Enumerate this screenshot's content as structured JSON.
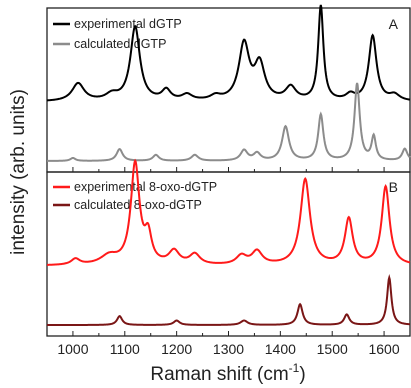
{
  "chart_data": {
    "type": "line",
    "xlabel": "Raman shift (cm",
    "xlabel_sup": "-1",
    "xlabel_end": ")",
    "ylabel": "intensity (arb. units)",
    "xlim": [
      950,
      1650
    ],
    "xticks": [
      "1000",
      "1100",
      "1200",
      "1300",
      "1400",
      "1500",
      "1600"
    ],
    "xtick_values": [
      1000,
      1100,
      1200,
      1300,
      1400,
      1500,
      1600
    ],
    "panels": [
      {
        "label": "A",
        "legend_position": "top-left",
        "series": [
          {
            "name": "experimental dGTP",
            "color": "#000000",
            "baseline": 0.42,
            "peaks": [
              [
                1010,
                0.12,
                14
              ],
              [
                1075,
                0.04,
                14
              ],
              [
                1120,
                0.5,
                11
              ],
              [
                1180,
                0.07,
                10
              ],
              [
                1220,
                0.04,
                12
              ],
              [
                1275,
                0.03,
                12
              ],
              [
                1330,
                0.38,
                12
              ],
              [
                1360,
                0.24,
                12
              ],
              [
                1420,
                0.09,
                12
              ],
              [
                1478,
                0.64,
                6
              ],
              [
                1535,
                0.04,
                10
              ],
              [
                1578,
                0.44,
                9
              ],
              [
                1620,
                0.04,
                12
              ]
            ]
          },
          {
            "name": "calculated dGTP",
            "color": "#8c8c8c",
            "baseline": 0.02,
            "peaks": [
              [
                1000,
                0.02,
                6
              ],
              [
                1090,
                0.08,
                7
              ],
              [
                1160,
                0.04,
                7
              ],
              [
                1235,
                0.04,
                8
              ],
              [
                1330,
                0.07,
                8
              ],
              [
                1355,
                0.05,
                8
              ],
              [
                1410,
                0.23,
                8
              ],
              [
                1478,
                0.31,
                6
              ],
              [
                1548,
                0.52,
                6
              ],
              [
                1580,
                0.16,
                5
              ],
              [
                1640,
                0.08,
                6
              ]
            ]
          }
        ]
      },
      {
        "label": "B",
        "legend_position": "top-left",
        "series": [
          {
            "name": "experimental 8-oxo-dGTP",
            "color": "#ff1a1a",
            "baseline": 0.42,
            "peaks": [
              [
                1005,
                0.04,
                10
              ],
              [
                1070,
                0.06,
                20
              ],
              [
                1120,
                0.68,
                10
              ],
              [
                1145,
                0.18,
                8
              ],
              [
                1195,
                0.09,
                12
              ],
              [
                1235,
                0.07,
                12
              ],
              [
                1325,
                0.06,
                12
              ],
              [
                1355,
                0.09,
                12
              ],
              [
                1448,
                0.58,
                11
              ],
              [
                1532,
                0.31,
                9
              ],
              [
                1603,
                0.53,
                9
              ]
            ]
          },
          {
            "name": "calculated 8-oxo-dGTP",
            "color": "#7a1616",
            "baseline": 0.02,
            "peaks": [
              [
                1090,
                0.06,
                6
              ],
              [
                1200,
                0.03,
                7
              ],
              [
                1330,
                0.03,
                8
              ],
              [
                1438,
                0.14,
                6
              ],
              [
                1528,
                0.07,
                6
              ],
              [
                1610,
                0.32,
                5
              ]
            ]
          }
        ]
      }
    ]
  }
}
